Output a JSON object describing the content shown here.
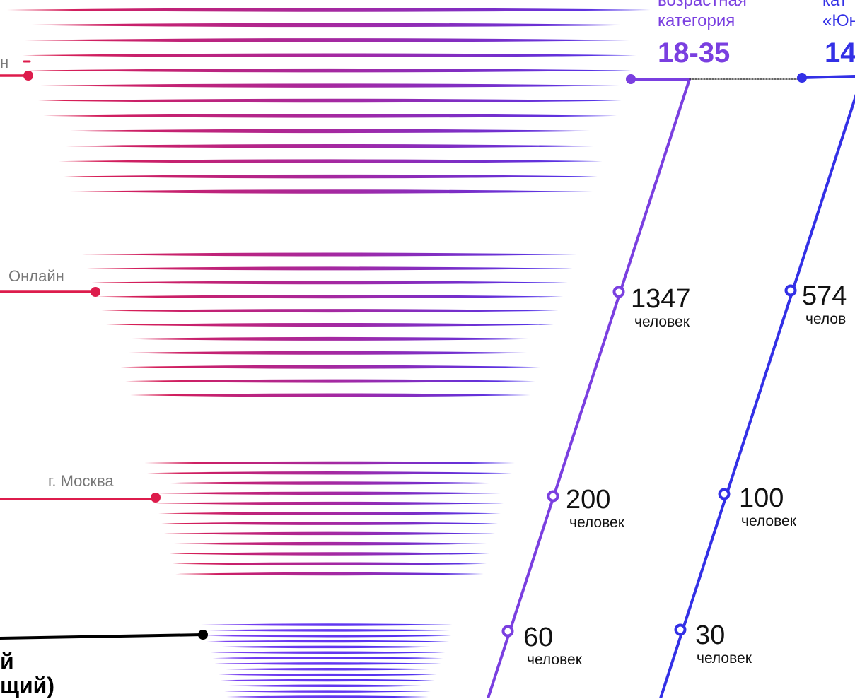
{
  "funnel": {
    "stages": [
      {
        "label": "н",
        "gradient": [
          "#dd1c4c",
          "#5b3af0"
        ],
        "left_line": "#dd1c4c"
      },
      {
        "label": "Онлайн",
        "gradient": [
          "#dd1c4c",
          "#5b3af0"
        ],
        "left_line": "#dd1c4c"
      },
      {
        "label": "г. Москва",
        "gradient": [
          "#dd1c4c",
          "#5b3af0"
        ],
        "left_line": "#dd1c4c"
      },
      {
        "label": "",
        "gradient": [
          "#6a3ef0",
          "#4a2ef0"
        ],
        "left_line": "#000000"
      }
    ],
    "bottom_left_text": [
      "й",
      "щий)"
    ]
  },
  "categories": [
    {
      "line1": "возрастная",
      "line2": "категория",
      "range": "18-35",
      "color": "#7a3fe0",
      "counts": [
        {
          "value": "1347",
          "unit": "человек"
        },
        {
          "value": "200",
          "unit": "человек"
        },
        {
          "value": "60",
          "unit": "человек"
        }
      ]
    },
    {
      "line1": "кат",
      "line2": "«Юн",
      "range": "14",
      "color": "#3330e6",
      "counts": [
        {
          "value": "574",
          "unit": "челов"
        },
        {
          "value": "100",
          "unit": "человек"
        },
        {
          "value": "30",
          "unit": "человек"
        }
      ]
    }
  ]
}
